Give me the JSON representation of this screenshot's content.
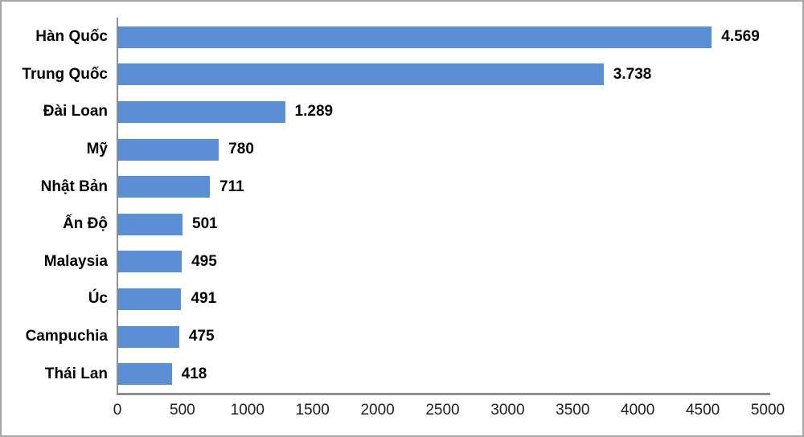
{
  "chart_data": {
    "type": "bar",
    "orientation": "horizontal",
    "title": "",
    "xlabel": "",
    "ylabel": "",
    "categories": [
      "Hàn Quốc",
      "Trung Quốc",
      "Đài Loan",
      "Mỹ",
      "Nhật Bản",
      "Ấn Độ",
      "Malaysia",
      "Úc",
      "Campuchia",
      "Thái Lan"
    ],
    "values": [
      4569,
      3738,
      1289,
      780,
      711,
      501,
      495,
      491,
      475,
      418
    ],
    "value_labels": [
      "4.569",
      "3.738",
      "1.289",
      "780",
      "711",
      "501",
      "495",
      "491",
      "475",
      "418"
    ],
    "xlim": [
      0,
      5000
    ],
    "x_ticks": [
      0,
      500,
      1000,
      1500,
      2000,
      2500,
      3000,
      3500,
      4000,
      4500,
      5000
    ],
    "x_tick_labels": [
      "0",
      "500",
      "1000",
      "1500",
      "2000",
      "2500",
      "3000",
      "3500",
      "4000",
      "4500",
      "5000"
    ],
    "grid": false,
    "legend": false,
    "bar_color": "#5B8FD4",
    "axis_color": "#8F8F8F",
    "frame_border_color": "#A6A6A6",
    "category_label_color": "#000000",
    "value_label_color": "#000000",
    "tick_label_color": "#1f1f1f"
  }
}
